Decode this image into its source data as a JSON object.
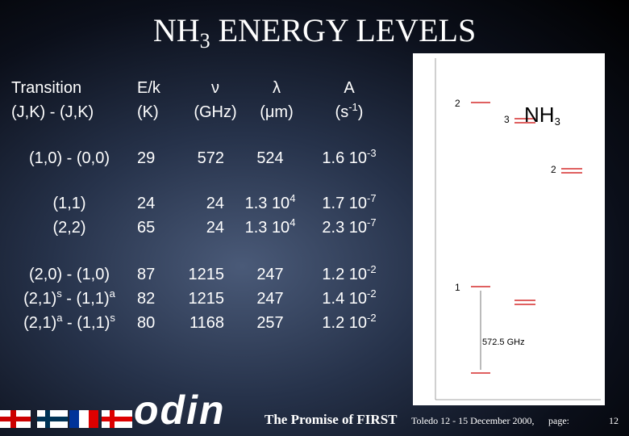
{
  "header": {
    "title": [
      {
        "text": "NH"
      },
      {
        "text": "3",
        "style": "sub"
      },
      {
        "text": " ENERGY LEVELS"
      }
    ]
  },
  "table": {
    "headers": [
      [
        [
          {
            "text": "Transition"
          }
        ],
        [
          {
            "text": "(J,K) - (J,K)"
          }
        ]
      ],
      [
        [
          {
            "text": "E/k"
          }
        ],
        [
          {
            "text": "(K)"
          }
        ]
      ],
      [
        [
          {
            "text": "ν"
          }
        ],
        [
          {
            "text": "(GHz)"
          }
        ]
      ],
      [
        [
          {
            "text": "λ"
          }
        ],
        [
          {
            "text": "(μm)"
          }
        ]
      ],
      [
        [
          {
            "text": "A"
          }
        ],
        [
          {
            "text": "(s"
          },
          {
            "text": "-1",
            "style": "sup"
          },
          {
            "text": ")"
          }
        ]
      ]
    ],
    "rows": [
      [
        [
          {
            "text": "(1,0) - (0,0)"
          }
        ],
        [
          {
            "text": "29"
          }
        ],
        [
          {
            "text": "572"
          }
        ],
        [
          {
            "text": "524"
          }
        ],
        [
          {
            "text": "1.6 10"
          },
          {
            "text": "-3",
            "style": "sup"
          }
        ]
      ],
      [
        [
          {
            "text": "(1,1)"
          }
        ],
        [
          {
            "text": "24"
          }
        ],
        [
          {
            "text": "24"
          }
        ],
        [
          {
            "text": "1.3 10"
          },
          {
            "text": "4",
            "style": "sup"
          }
        ],
        [
          {
            "text": "1.7 10"
          },
          {
            "text": "-7",
            "style": "sup"
          }
        ]
      ],
      [
        [
          {
            "text": "(2,2)"
          }
        ],
        [
          {
            "text": "65"
          }
        ],
        [
          {
            "text": "24"
          }
        ],
        [
          {
            "text": "1.3 10"
          },
          {
            "text": "4",
            "style": "sup"
          }
        ],
        [
          {
            "text": "2.3 10"
          },
          {
            "text": "-7",
            "style": "sup"
          }
        ]
      ],
      [
        [
          {
            "text": "(2,0) - (1,0)"
          }
        ],
        [
          {
            "text": "87"
          }
        ],
        [
          {
            "text": "1215"
          }
        ],
        [
          {
            "text": "247"
          }
        ],
        [
          {
            "text": "1.2 10"
          },
          {
            "text": "-2",
            "style": "sup"
          }
        ]
      ],
      [
        [
          {
            "text": "(2,1)"
          },
          {
            "text": "s",
            "style": "sup"
          },
          {
            "text": " - (1,1)"
          },
          {
            "text": "a",
            "style": "sup"
          }
        ],
        [
          {
            "text": "82"
          }
        ],
        [
          {
            "text": "1215"
          }
        ],
        [
          {
            "text": "247"
          }
        ],
        [
          {
            "text": "1.4 10"
          },
          {
            "text": "-2",
            "style": "sup"
          }
        ]
      ],
      [
        [
          {
            "text": "(2,1)"
          },
          {
            "text": "a",
            "style": "sup"
          },
          {
            "text": " - (1,1)"
          },
          {
            "text": "s",
            "style": "sup"
          }
        ],
        [
          {
            "text": "80"
          }
        ],
        [
          {
            "text": "1168"
          }
        ],
        [
          {
            "text": "257"
          }
        ],
        [
          {
            "text": "1.2 10"
          },
          {
            "text": "-2",
            "style": "sup"
          }
        ]
      ]
    ]
  },
  "diagram": {
    "title": [
      {
        "text": "NH"
      },
      {
        "text": "3",
        "style": "sub"
      }
    ],
    "level_labels": [
      "2",
      "3",
      "2",
      "1"
    ],
    "transition_label": "572.5 GHz"
  },
  "logo": "odin",
  "footer": {
    "title": "The Promise of FIRST",
    "event": "Toledo 12 - 15 December 2000,",
    "page_label": "page:",
    "page": "12"
  }
}
